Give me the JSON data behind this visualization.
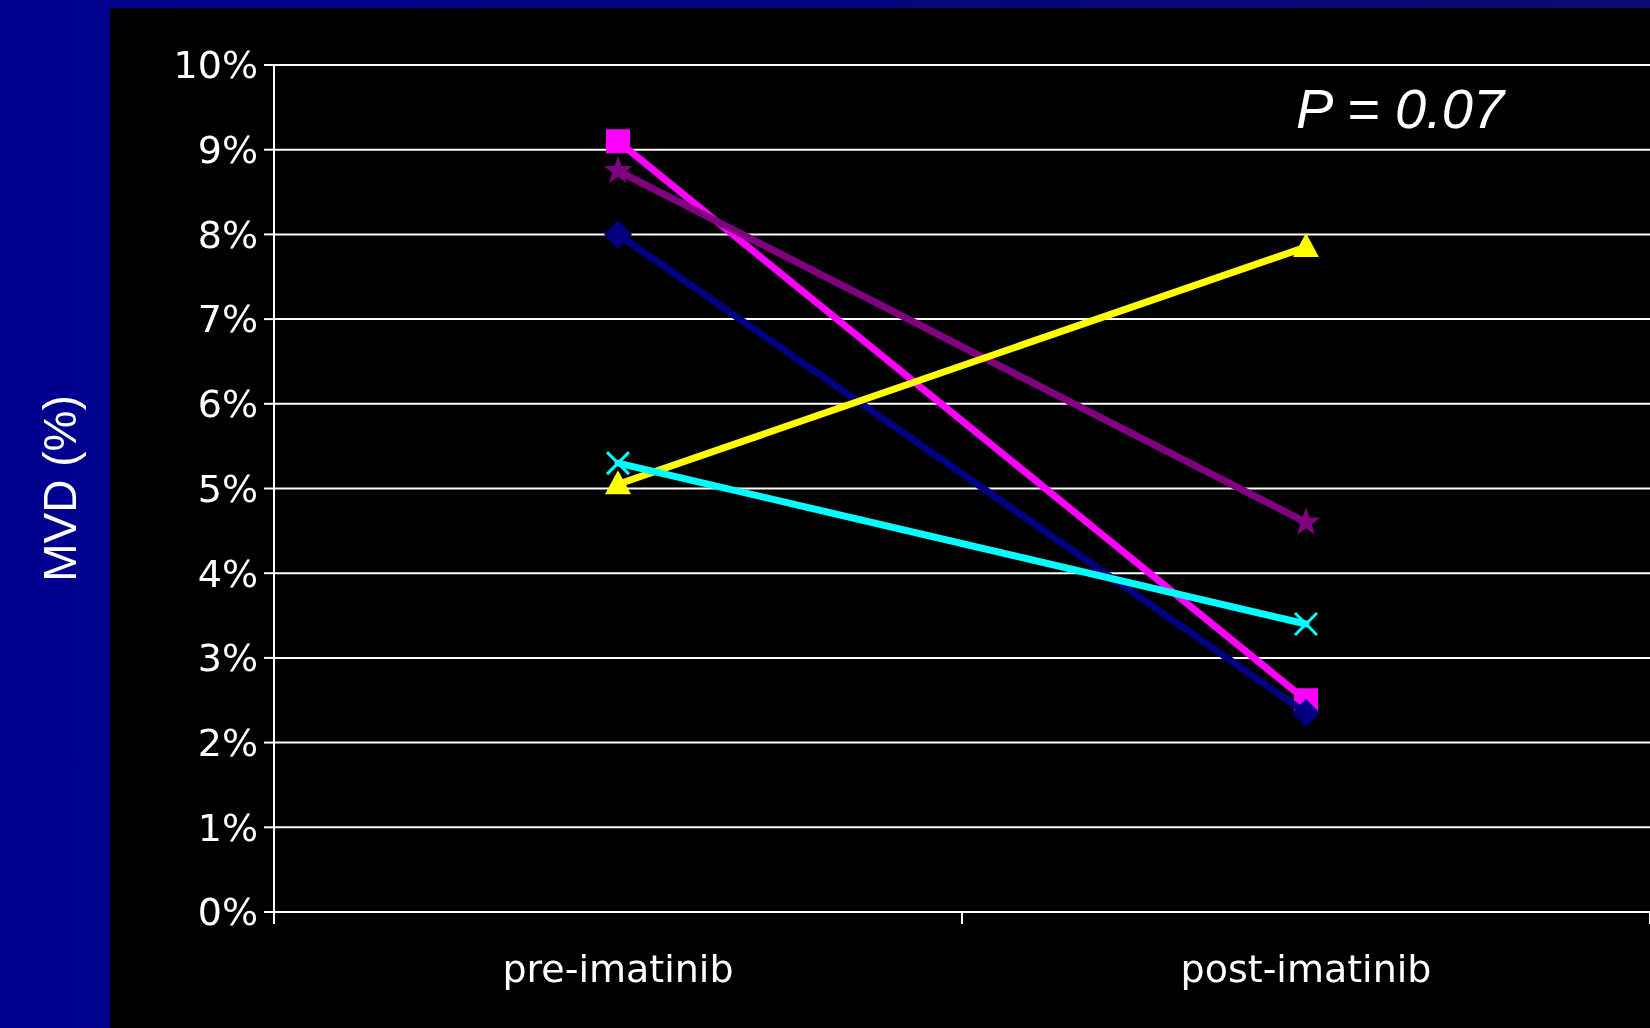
{
  "chart_data": {
    "type": "line",
    "ylabel": "MVD (%)",
    "categories": [
      "pre-imatinib",
      "post-imatinib"
    ],
    "series": [
      {
        "color": "#ff00ff",
        "values": [
          9.1,
          2.5
        ],
        "marker": "square"
      },
      {
        "color": "#000080",
        "values": [
          8.0,
          2.35
        ],
        "marker": "diamond"
      },
      {
        "color": "#800080",
        "values": [
          8.75,
          4.6
        ],
        "marker": "star"
      },
      {
        "color": "#ffff00",
        "values": [
          5.05,
          7.85
        ],
        "marker": "triangle"
      },
      {
        "color": "#00ffff",
        "values": [
          5.3,
          3.4
        ],
        "marker": "cross"
      }
    ],
    "ylim": [
      0,
      10
    ],
    "yticks": [
      {
        "value": 0,
        "label": "0%"
      },
      {
        "value": 1,
        "label": "1%"
      },
      {
        "value": 2,
        "label": "2%"
      },
      {
        "value": 3,
        "label": "3%"
      },
      {
        "value": 4,
        "label": "4%"
      },
      {
        "value": 5,
        "label": "5%"
      },
      {
        "value": 6,
        "label": "6%"
      },
      {
        "value": 7,
        "label": "7%"
      },
      {
        "value": 8,
        "label": "8%"
      },
      {
        "value": 9,
        "label": "9%"
      },
      {
        "value": 10,
        "label": "10%"
      }
    ],
    "grid": "y",
    "line_style": "solid",
    "annotations": [
      "P = 0.07"
    ]
  }
}
